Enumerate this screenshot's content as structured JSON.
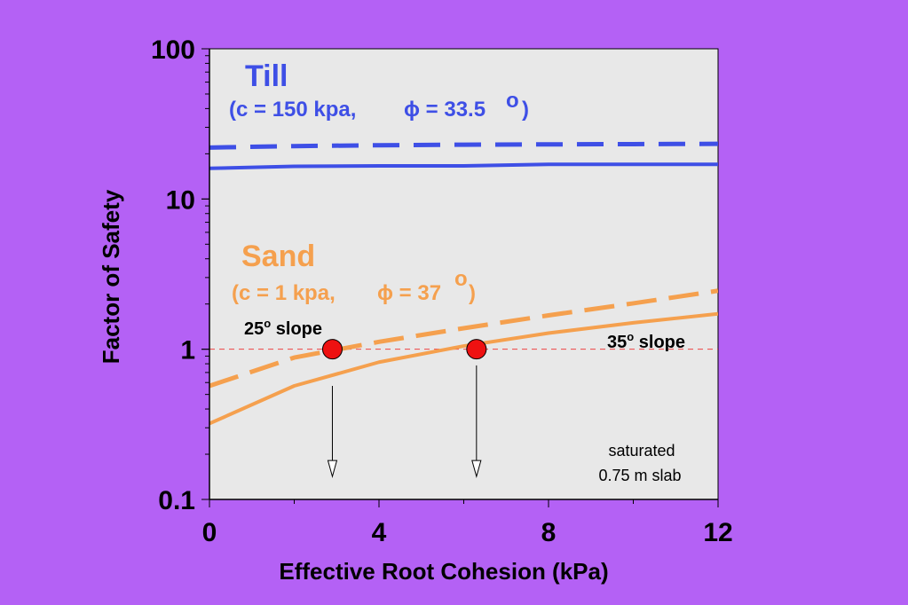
{
  "chart_data": {
    "type": "line",
    "xlabel": "Effective Root Cohesion (kPa)",
    "ylabel": "Factor of Safety",
    "xlim": [
      0,
      12
    ],
    "ylim": [
      0.1,
      100
    ],
    "yscale": "log",
    "x_ticks": [
      "0",
      "4",
      "8",
      "12"
    ],
    "y_ticks": [
      "0.1",
      "1",
      "10",
      "100"
    ],
    "colors": {
      "background": "#b461f5",
      "plot_area": "#e8e8e8",
      "till": "#3e4fe6",
      "sand": "#f5a04e",
      "marker": "#ee1111",
      "reference_line": "#ee4444"
    },
    "series": [
      {
        "group": "till",
        "style": "dashed",
        "x": [
          0,
          2,
          4,
          6,
          8,
          10,
          12
        ],
        "y": [
          22,
          22.5,
          22.8,
          23,
          23.1,
          23.2,
          23.3
        ]
      },
      {
        "group": "till",
        "style": "solid",
        "x": [
          0,
          2,
          4,
          6,
          8,
          10,
          12
        ],
        "y": [
          16,
          16.5,
          16.6,
          16.6,
          17,
          17,
          17
        ]
      },
      {
        "group": "sand",
        "style": "dashed",
        "x": [
          0,
          2,
          4,
          6,
          8,
          10,
          12
        ],
        "y": [
          0.57,
          0.88,
          1.12,
          1.38,
          1.68,
          2.02,
          2.45
        ]
      },
      {
        "group": "sand",
        "style": "solid",
        "x": [
          0,
          2,
          4,
          6,
          8,
          10,
          12
        ],
        "y": [
          0.32,
          0.57,
          0.82,
          1.05,
          1.28,
          1.5,
          1.72
        ]
      }
    ],
    "reference_line": {
      "y": 1
    },
    "markers": [
      {
        "x": 2.9,
        "y": 1,
        "label": "25",
        "sup": "o",
        "suffix": " slope"
      },
      {
        "x": 6.3,
        "y": 1,
        "label": "35",
        "sup": "o",
        "suffix": " slope"
      }
    ],
    "arrows": [
      {
        "x": 2.9,
        "y_from": 0.57,
        "y_to": 0.15
      },
      {
        "x": 6.3,
        "y_from": 0.78,
        "y_to": 0.15
      }
    ],
    "annotations": {
      "till_title": "Till",
      "till_params": "(c = 150 kpa,",
      "till_phi": "ϕ = 33.5",
      "till_deg": "o",
      "till_close": ")",
      "sand_title": "Sand",
      "sand_params": "(c = 1 kpa,",
      "sand_phi": "ϕ = 37",
      "sand_deg": "o",
      "sand_close": ")",
      "note_line1": "saturated",
      "note_line2": "0.75 m slab"
    }
  }
}
